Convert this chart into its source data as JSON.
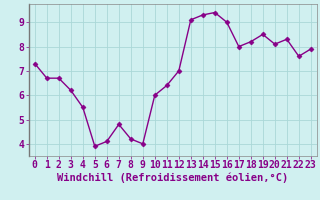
{
  "x": [
    0,
    1,
    2,
    3,
    4,
    5,
    6,
    7,
    8,
    9,
    10,
    11,
    12,
    13,
    14,
    15,
    16,
    17,
    18,
    19,
    20,
    21,
    22,
    23
  ],
  "y": [
    7.3,
    6.7,
    6.7,
    6.2,
    5.5,
    3.9,
    4.1,
    4.8,
    4.2,
    4.0,
    6.0,
    6.4,
    7.0,
    9.1,
    9.3,
    9.4,
    9.0,
    8.0,
    8.2,
    8.5,
    8.1,
    8.3,
    7.6,
    7.9
  ],
  "line_color": "#880088",
  "marker": "D",
  "markersize": 2.5,
  "linewidth": 1.0,
  "background_color": "#d0f0f0",
  "grid_color": "#aad8d8",
  "xlabel": "Windchill (Refroidissement éolien,°C)",
  "xlabel_fontsize": 7.5,
  "xlabel_color": "#880088",
  "ylabel_ticks": [
    4,
    5,
    6,
    7,
    8,
    9
  ],
  "xlim": [
    -0.5,
    23.5
  ],
  "ylim": [
    3.5,
    9.75
  ],
  "tick_fontsize": 7,
  "xtick_labels": [
    "0",
    "1",
    "2",
    "3",
    "4",
    "5",
    "6",
    "7",
    "8",
    "9",
    "10",
    "11",
    "12",
    "13",
    "14",
    "15",
    "16",
    "17",
    "18",
    "19",
    "20",
    "21",
    "22",
    "23"
  ],
  "spine_color": "#888888",
  "left_spine_color": "#777777"
}
